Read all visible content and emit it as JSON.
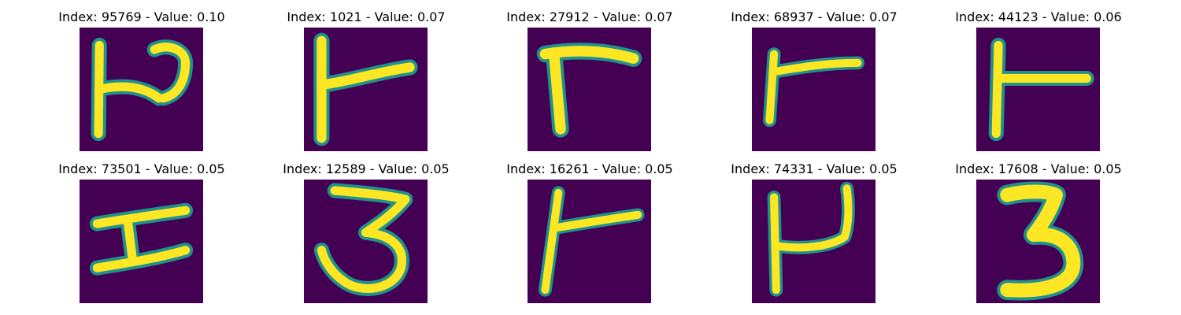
{
  "colors": {
    "background": "#440154",
    "foreground": "#fde725",
    "edge": "#21918c"
  },
  "panels": [
    {
      "title": "Index: 95769 - Value: 0.10",
      "glyph": "h-shape-rotated"
    },
    {
      "title": "Index: 1021 - Value: 0.07",
      "glyph": "t-shape-rotated"
    },
    {
      "title": "Index: 27912 - Value: 0.07",
      "glyph": "gamma-shape"
    },
    {
      "title": "Index: 68937 - Value: 0.07",
      "glyph": "t-shape-rotated"
    },
    {
      "title": "Index: 44123 - Value: 0.06",
      "glyph": "t-shape-rotated"
    },
    {
      "title": "Index: 73501 - Value: 0.05",
      "glyph": "i-shape-sideways"
    },
    {
      "title": "Index: 12589 - Value: 0.05",
      "glyph": "digit-three"
    },
    {
      "title": "Index: 16261 - Value: 0.05",
      "glyph": "t-shape-rotated"
    },
    {
      "title": "Index: 74331 - Value: 0.05",
      "glyph": "u-shape-rotated"
    },
    {
      "title": "Index: 17608 - Value: 0.05",
      "glyph": "digit-three"
    }
  ]
}
